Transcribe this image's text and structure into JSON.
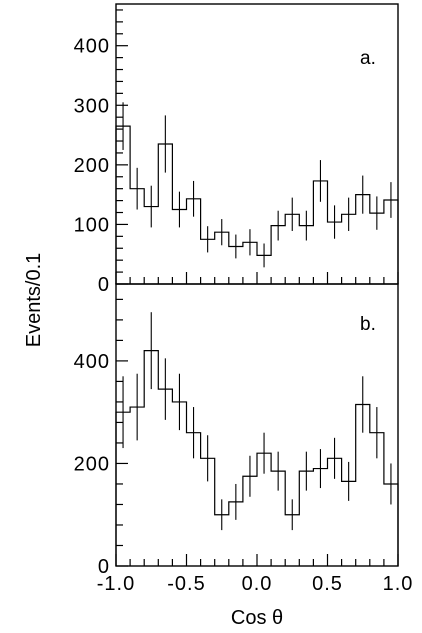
{
  "chart_data": [
    {
      "type": "histogram",
      "panel_label": "a.",
      "ylabel": "Events/0.1",
      "xlabel": "Cos θ",
      "xlim": [
        -1.0,
        1.0
      ],
      "ylim": [
        0,
        470
      ],
      "yticks": [
        0,
        100,
        200,
        300,
        400
      ],
      "xticks": [
        "-1.0",
        "-0.5",
        "0.0",
        "0.5",
        "1.0"
      ],
      "bin_width": 0.1,
      "x": [
        -0.95,
        -0.85,
        -0.75,
        -0.65,
        -0.55,
        -0.45,
        -0.35,
        -0.25,
        -0.15,
        -0.05,
        0.05,
        0.15,
        0.25,
        0.35,
        0.45,
        0.55,
        0.65,
        0.75,
        0.85,
        0.95
      ],
      "values": [
        265,
        160,
        130,
        235,
        125,
        143,
        75,
        87,
        63,
        70,
        48,
        98,
        117,
        98,
        173,
        104,
        117,
        150,
        119,
        141
      ],
      "errors": [
        40,
        35,
        35,
        48,
        30,
        30,
        22,
        22,
        20,
        22,
        20,
        25,
        28,
        25,
        35,
        28,
        28,
        32,
        28,
        30
      ]
    },
    {
      "type": "histogram",
      "panel_label": "b.",
      "ylabel": "Events/0.1",
      "xlabel": "Cos θ",
      "xlim": [
        -1.0,
        1.0
      ],
      "ylim": [
        0,
        550
      ],
      "yticks": [
        0,
        200,
        400
      ],
      "xticks": [
        "-1.0",
        "-0.5",
        "0.0",
        "0.5",
        "1.0"
      ],
      "bin_width": 0.1,
      "x": [
        -0.95,
        -0.85,
        -0.75,
        -0.65,
        -0.55,
        -0.45,
        -0.35,
        -0.25,
        -0.15,
        -0.05,
        0.05,
        0.15,
        0.25,
        0.35,
        0.45,
        0.55,
        0.65,
        0.75,
        0.85,
        0.95
      ],
      "values": [
        300,
        310,
        420,
        345,
        320,
        260,
        210,
        100,
        125,
        175,
        220,
        185,
        100,
        185,
        190,
        210,
        165,
        315,
        260,
        160
      ],
      "errors": [
        70,
        65,
        75,
        60,
        55,
        50,
        45,
        30,
        35,
        40,
        40,
        38,
        30,
        38,
        38,
        40,
        38,
        55,
        50,
        40
      ]
    }
  ]
}
